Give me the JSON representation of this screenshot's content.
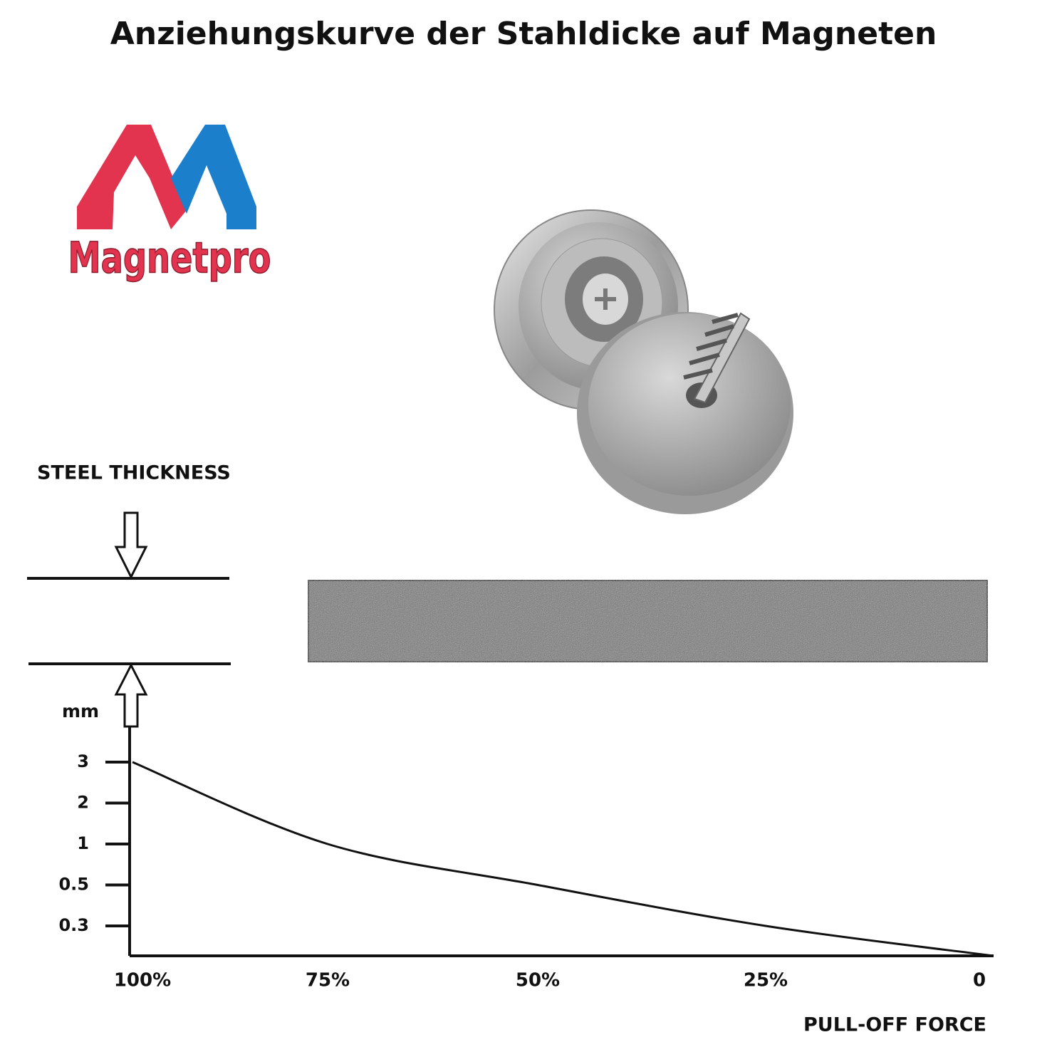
{
  "logo": "Magnetpro",
  "chart_data": {
    "type": "line",
    "title": "Anziehungskurve der Stahldicke auf Magneten",
    "annotation": "STEEL THICKNESS",
    "y_label": "mm",
    "x_label": "PULL-OFF FORCE",
    "categories": [
      "100%",
      "75%",
      "50%",
      "25%",
      "0"
    ],
    "values": [
      3,
      1,
      0.5,
      0.3,
      0
    ],
    "color": "#111111",
    "ylim": [
      0,
      3
    ],
    "yticks": [
      3,
      2,
      1,
      0.5,
      0.3
    ]
  }
}
